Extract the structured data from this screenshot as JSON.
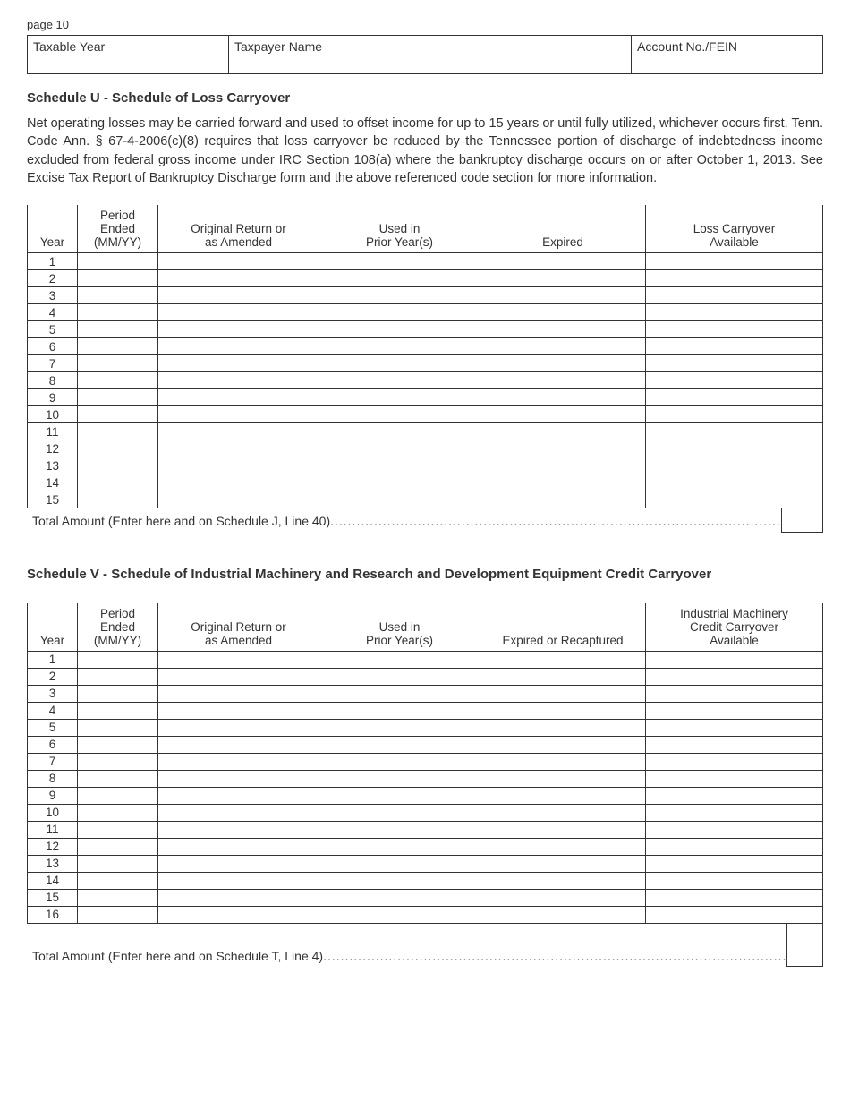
{
  "page_label": "page 10",
  "header": {
    "taxable_year": "Taxable Year",
    "taxpayer_name": "Taxpayer Name",
    "account": "Account No./FEIN"
  },
  "schedule_u": {
    "title": "Schedule U - Schedule of Loss Carryover",
    "body": "Net operating losses may be carried forward and used to offset income for up to 15 years or until fully utilized, whichever occurs first.  Tenn. Code Ann. § 67-4-2006(c)(8) requires that loss carryover be reduced by the Tennessee portion of discharge of indebtedness income excluded from federal gross income under IRC Section 108(a) where the bankruptcy discharge occurs on or after October 1, 2013.  See Excise Tax Report of Bankruptcy Discharge form and the above referenced code section for more information.",
    "columns": {
      "year": "Year",
      "period": "Period\nEnded\n(MM/YY)",
      "original": "Original Return or\nas Amended",
      "used": "Used in\nPrior Year(s)",
      "expired": "Expired",
      "carryover": "Loss Carryover\nAvailable"
    },
    "rows": [
      "1",
      "2",
      "3",
      "4",
      "5",
      "6",
      "7",
      "8",
      "9",
      "10",
      "11",
      "12",
      "13",
      "14",
      "15"
    ],
    "total_label": "Total Amount (Enter here and on Schedule J, Line 40)"
  },
  "schedule_v": {
    "title": "Schedule V - Schedule of Industrial Machinery and Research and Development Equipment Credit Carryover",
    "columns": {
      "year": "Year",
      "period": "Period\nEnded\n(MM/YY)",
      "original": "Original Return or\nas Amended",
      "used": "Used in\nPrior Year(s)",
      "expired": "Expired or Recaptured",
      "carryover": "Industrial Machinery\nCredit Carryover\nAvailable"
    },
    "rows": [
      "1",
      "2",
      "3",
      "4",
      "5",
      "6",
      "7",
      "8",
      "9",
      "10",
      "11",
      "12",
      "13",
      "14",
      "15",
      "16"
    ],
    "total_label": "Total Amount (Enter here and on Schedule T, Line 4)"
  },
  "colors": {
    "text": "#333333",
    "border": "#333333",
    "background": "#ffffff"
  }
}
